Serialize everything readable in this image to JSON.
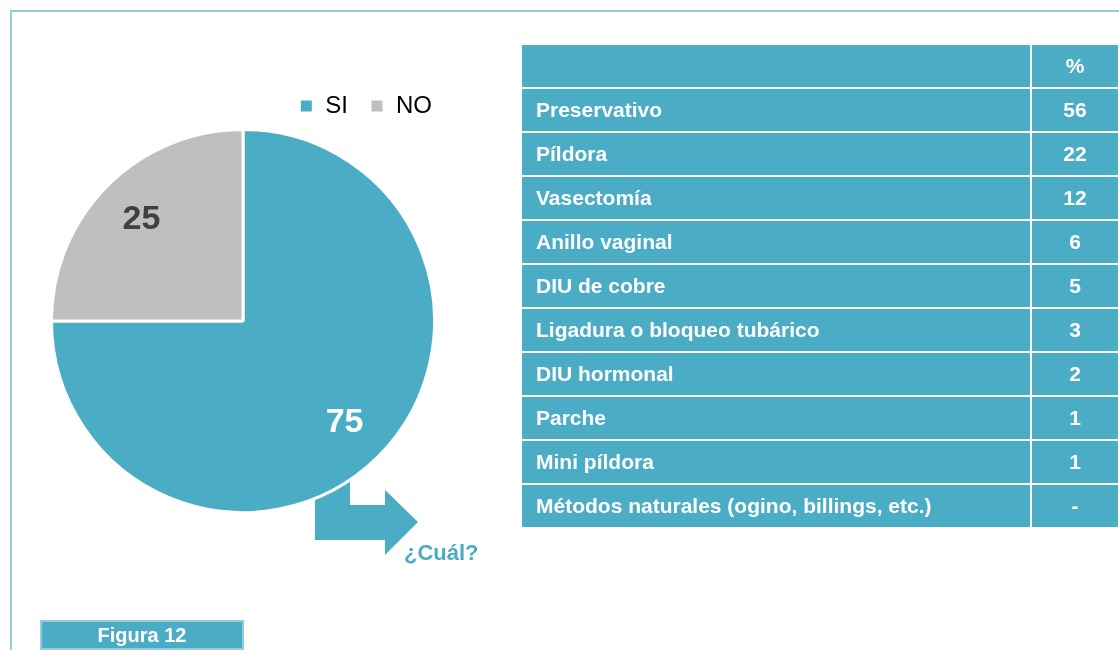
{
  "chart_data": [
    {
      "type": "pie",
      "categories": [
        "SI",
        "NO"
      ],
      "values": [
        75,
        25
      ],
      "colors": [
        "#4bacc6",
        "#bfbfbf"
      ],
      "data_labels": true,
      "legend": "top right",
      "annotations": [
        "¿Cuál?",
        "Figura 12"
      ]
    },
    {
      "type": "other",
      "ylabel": "%",
      "color": "#4bacc6",
      "data_labels": true,
      "categories": [
        "Preservativo",
        "Píldora",
        "Vasectomía",
        "Anillo vaginal",
        "DIU de cobre",
        "Ligadura o bloqueo tubárico",
        "DIU hormonal",
        "Parche",
        "Mini píldora",
        "Métodos naturales (ogino, billings, etc.)"
      ],
      "value_labels": [
        "56",
        "22",
        "12",
        "6",
        "5",
        "3",
        "2",
        "1",
        "1",
        "-"
      ]
    }
  ]
}
